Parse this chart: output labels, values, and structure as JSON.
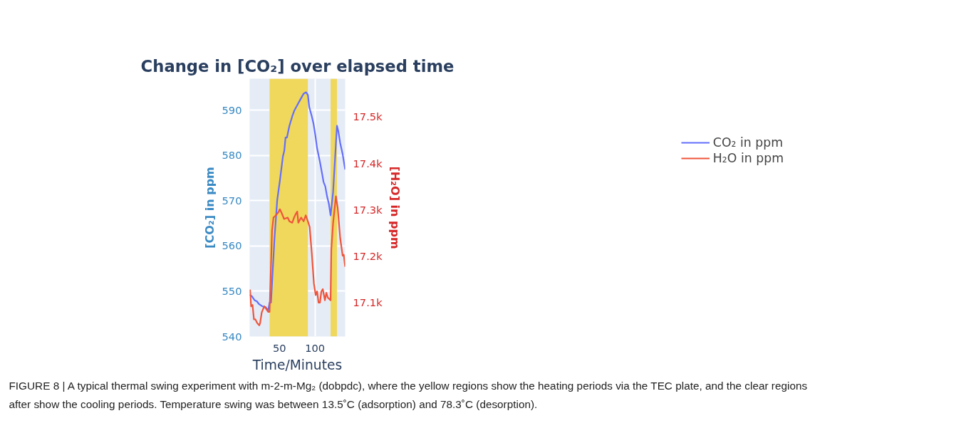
{
  "chart_data": {
    "type": "line",
    "title": "Change in [CO₂] over elapsed time",
    "xlabel": "Time/Minutes",
    "ylabel": "[CO₂] in ppm",
    "y2label": "[H₂O] in ppm",
    "xlim": [
      8,
      142.5
    ],
    "xticks": [
      50,
      100
    ],
    "ylim": [
      540,
      597
    ],
    "yticks": [
      540,
      550,
      560,
      570,
      580,
      590
    ],
    "y2lim": [
      17027,
      17582
    ],
    "y2ticks": [
      {
        "value": 17100,
        "label": "17.1k"
      },
      {
        "value": 17200,
        "label": "17.2k"
      },
      {
        "value": 17300,
        "label": "17.3k"
      },
      {
        "value": 17400,
        "label": "17.4k"
      },
      {
        "value": 17500,
        "label": "17.5k"
      }
    ],
    "grid": true,
    "legend": "top right",
    "line_style": "solid",
    "marker": "none",
    "bands": [
      {
        "axis": "x",
        "from": 36,
        "to": 90,
        "color": "#f0d85c"
      },
      {
        "axis": "x",
        "from": 122,
        "to": 131,
        "color": "#f0d85c"
      }
    ],
    "series": [
      {
        "name": "CO₂ in ppm",
        "color": "#636efa",
        "x": [
          8,
          11,
          15,
          18,
          21,
          25.5,
          30.5,
          34,
          36,
          38,
          43,
          46.8,
          50.5,
          54.8,
          56.8,
          58.5,
          60.5,
          64,
          68,
          71,
          75.5,
          79,
          84,
          87.5,
          90,
          92,
          95.5,
          98,
          100.5,
          103,
          107,
          110.5,
          112,
          114.5,
          117,
          119.5,
          122,
          125.5,
          131,
          133,
          135.5,
          139,
          142.5
        ],
        "values": [
          549.2,
          548.9,
          548,
          547.8,
          547.2,
          546.7,
          546.5,
          545.7,
          547.5,
          547.5,
          561.8,
          570.2,
          574.4,
          579.8,
          581.1,
          584,
          584,
          586.6,
          588.7,
          590,
          591.3,
          592.3,
          593.7,
          594,
          593.4,
          590.7,
          588.7,
          587,
          584.5,
          581.6,
          578.6,
          575.6,
          574.2,
          573.2,
          571,
          569.4,
          566.8,
          571.9,
          586.6,
          585.3,
          582.8,
          580.3,
          576.9
        ]
      },
      {
        "name": "H₂O in ppm",
        "color": "#ef553b",
        "axis": "y2",
        "x": [
          8.5,
          10,
          12,
          14,
          16,
          18.5,
          21.5,
          22.7,
          25,
          28.5,
          31,
          34,
          36,
          39.5,
          41.5,
          45,
          49,
          50.5,
          53,
          56.5,
          61.5,
          64,
          68,
          70.5,
          73,
          75,
          76.5,
          80.5,
          84,
          87,
          90,
          92.5,
          95.5,
          98.5,
          101,
          103,
          105,
          107,
          109,
          111,
          114,
          116,
          118,
          122,
          123,
          125.5,
          129.5,
          132,
          135.5,
          139,
          140.5,
          142.5
        ],
        "values": [
          17128,
          17092,
          17095,
          17064,
          17064,
          17056,
          17051,
          17056,
          17079,
          17092,
          17087,
          17080,
          17080,
          17255,
          17283,
          17288,
          17296,
          17301,
          17293,
          17280,
          17283,
          17275,
          17272,
          17283,
          17291,
          17296,
          17272,
          17283,
          17275,
          17288,
          17275,
          17263,
          17206,
          17141,
          17116,
          17124,
          17100,
          17100,
          17124,
          17129,
          17105,
          17121,
          17111,
          17105,
          17214,
          17271,
          17329,
          17304,
          17239,
          17201,
          17203,
          17177
        ]
      }
    ],
    "annotations": [
      "FIGURE 8 | A typical thermal swing experiment with m-2-m-Mg₂ (dobpdc), where the yellow regions show the heating periods via the TEC plate, and the clear regions after show the cooling periods. Temperature swing was between 13.5˚C (adsorption) and 78.3˚C (desorption)."
    ]
  }
}
